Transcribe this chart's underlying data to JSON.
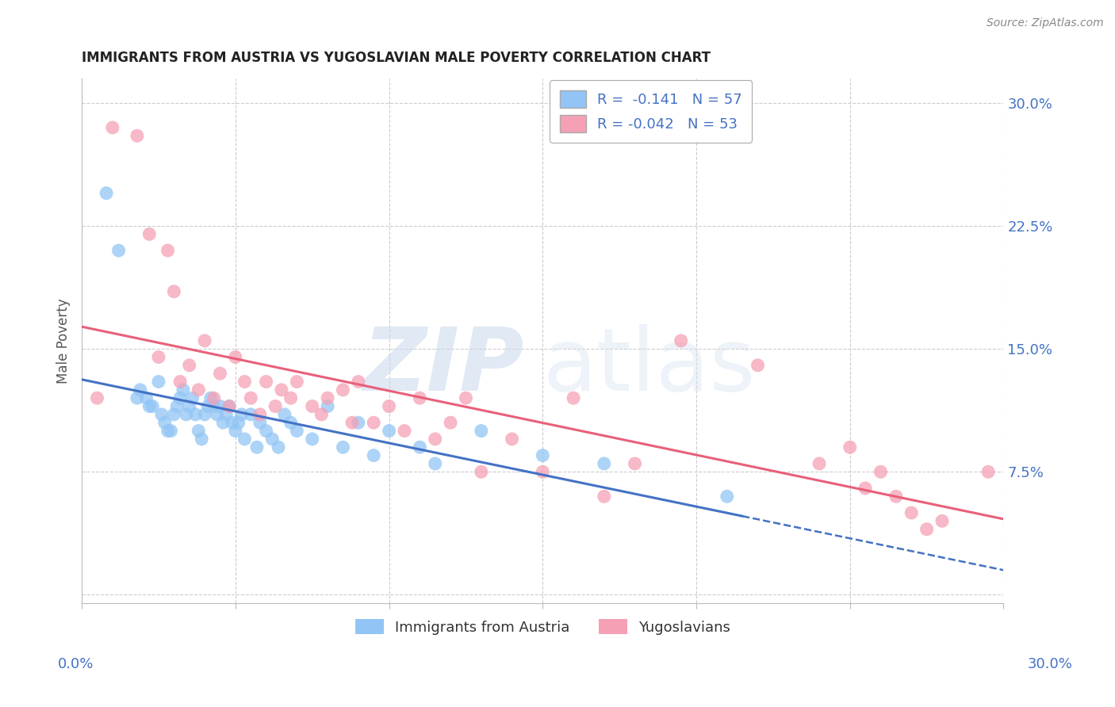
{
  "title": "IMMIGRANTS FROM AUSTRIA VS YUGOSLAVIAN MALE POVERTY CORRELATION CHART",
  "source": "Source: ZipAtlas.com",
  "ylabel": "Male Poverty",
  "ytick_values": [
    0.0,
    0.075,
    0.15,
    0.225,
    0.3
  ],
  "xlim": [
    0.0,
    0.3
  ],
  "ylim": [
    -0.005,
    0.315
  ],
  "legend_r_austria": "-0.141",
  "legend_n_austria": "57",
  "legend_r_yugoslav": "-0.042",
  "legend_n_yugoslav": "53",
  "color_austria": "#92C5F5",
  "color_yugoslav": "#F5A0B5",
  "trend_color_austria": "#4472C4",
  "trend_color_yugoslav": "#E8607A",
  "watermark_zip": "ZIP",
  "watermark_atlas": "atlas",
  "background_color": "#FFFFFF",
  "grid_color": "#CCCCCC",
  "title_color": "#222222",
  "axis_label_color": "#4472C4",
  "austria_x": [
    0.008,
    0.012,
    0.018,
    0.019,
    0.021,
    0.022,
    0.023,
    0.025,
    0.026,
    0.027,
    0.028,
    0.029,
    0.03,
    0.031,
    0.032,
    0.033,
    0.034,
    0.035,
    0.036,
    0.037,
    0.038,
    0.039,
    0.04,
    0.041,
    0.042,
    0.043,
    0.044,
    0.045,
    0.046,
    0.047,
    0.048,
    0.049,
    0.05,
    0.051,
    0.052,
    0.053,
    0.055,
    0.057,
    0.058,
    0.06,
    0.062,
    0.064,
    0.066,
    0.068,
    0.07,
    0.075,
    0.08,
    0.085,
    0.09,
    0.095,
    0.1,
    0.11,
    0.115,
    0.13,
    0.15,
    0.17,
    0.21
  ],
  "austria_y": [
    0.245,
    0.21,
    0.12,
    0.125,
    0.12,
    0.115,
    0.115,
    0.13,
    0.11,
    0.105,
    0.1,
    0.1,
    0.11,
    0.115,
    0.12,
    0.125,
    0.11,
    0.115,
    0.12,
    0.11,
    0.1,
    0.095,
    0.11,
    0.115,
    0.12,
    0.115,
    0.11,
    0.115,
    0.105,
    0.11,
    0.115,
    0.105,
    0.1,
    0.105,
    0.11,
    0.095,
    0.11,
    0.09,
    0.105,
    0.1,
    0.095,
    0.09,
    0.11,
    0.105,
    0.1,
    0.095,
    0.115,
    0.09,
    0.105,
    0.085,
    0.1,
    0.09,
    0.08,
    0.1,
    0.085,
    0.08,
    0.06
  ],
  "yugoslav_x": [
    0.005,
    0.01,
    0.018,
    0.022,
    0.025,
    0.028,
    0.03,
    0.032,
    0.035,
    0.038,
    0.04,
    0.043,
    0.045,
    0.048,
    0.05,
    0.053,
    0.055,
    0.058,
    0.06,
    0.063,
    0.065,
    0.068,
    0.07,
    0.075,
    0.078,
    0.08,
    0.085,
    0.088,
    0.09,
    0.095,
    0.1,
    0.105,
    0.11,
    0.115,
    0.12,
    0.125,
    0.13,
    0.14,
    0.15,
    0.16,
    0.17,
    0.18,
    0.195,
    0.22,
    0.24,
    0.25,
    0.255,
    0.26,
    0.265,
    0.27,
    0.275,
    0.28,
    0.295
  ],
  "yugoslav_y": [
    0.12,
    0.285,
    0.28,
    0.22,
    0.145,
    0.21,
    0.185,
    0.13,
    0.14,
    0.125,
    0.155,
    0.12,
    0.135,
    0.115,
    0.145,
    0.13,
    0.12,
    0.11,
    0.13,
    0.115,
    0.125,
    0.12,
    0.13,
    0.115,
    0.11,
    0.12,
    0.125,
    0.105,
    0.13,
    0.105,
    0.115,
    0.1,
    0.12,
    0.095,
    0.105,
    0.12,
    0.075,
    0.095,
    0.075,
    0.12,
    0.06,
    0.08,
    0.155,
    0.14,
    0.08,
    0.09,
    0.065,
    0.075,
    0.06,
    0.05,
    0.04,
    0.045,
    0.075
  ]
}
